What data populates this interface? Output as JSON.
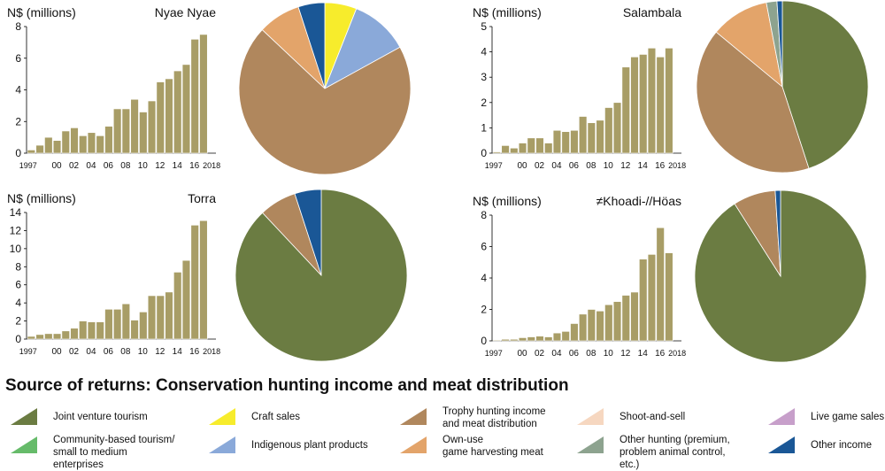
{
  "legend": {
    "title": "Source of returns: Conservation hunting income and meat distribution",
    "items": [
      {
        "label": "Joint venture tourism",
        "color": "#6b7c42"
      },
      {
        "label": "Craft sales",
        "color": "#f7ec2c"
      },
      {
        "label": "Trophy hunting income\nand meat distribution",
        "color": "#b0875d"
      },
      {
        "label": "Shoot-and-sell",
        "color": "#f6d7c0"
      },
      {
        "label": "Live game sales",
        "color": "#c79fca"
      },
      {
        "label": "Community-based tourism/\nsmall to medium enterprises",
        "color": "#66bb6a"
      },
      {
        "label": "Indigenous plant products",
        "color": "#8aa9d9"
      },
      {
        "label": "Own-use\ngame harvesting meat",
        "color": "#e3a46a"
      },
      {
        "label": "Other hunting (premium,\nproblem animal control, etc.)",
        "color": "#8da38f"
      },
      {
        "label": "Other income",
        "color": "#1a5796"
      }
    ]
  },
  "chart_data": [
    {
      "type": "bar",
      "title": "Nyae Nyae",
      "ylabel": "N$ (millions)",
      "ylim": [
        0,
        8
      ],
      "yticks": [
        0,
        2,
        4,
        6,
        8
      ],
      "xticks": [
        "1997",
        "00",
        "02",
        "04",
        "06",
        "08",
        "10",
        "12",
        "14",
        "16",
        "2018"
      ],
      "x": [
        1997,
        1998,
        1999,
        2000,
        2001,
        2002,
        2003,
        2004,
        2005,
        2006,
        2007,
        2008,
        2009,
        2010,
        2011,
        2012,
        2013,
        2014,
        2015,
        2016,
        2017,
        2018
      ],
      "values": [
        0.2,
        0.5,
        1.0,
        0.8,
        1.4,
        1.6,
        1.1,
        1.3,
        1.1,
        1.7,
        2.8,
        2.8,
        3.4,
        2.6,
        3.3,
        4.5,
        4.7,
        5.2,
        5.6,
        7.2,
        7.5,
        0
      ],
      "bar_color": "#a89d66"
    },
    {
      "type": "pie",
      "slices": [
        {
          "source": "Craft sales",
          "value": 6,
          "color": "#f7ec2c"
        },
        {
          "source": "Indigenous plant products",
          "value": 11,
          "color": "#8aa9d9"
        },
        {
          "source": "Trophy hunting income and meat distribution",
          "value": 70,
          "color": "#b0875d"
        },
        {
          "source": "Own-use game harvesting meat",
          "value": 8,
          "color": "#e3a46a"
        },
        {
          "source": "Other income",
          "value": 5,
          "color": "#1a5796"
        }
      ]
    },
    {
      "type": "bar",
      "title": "Salambala",
      "ylabel": "N$ (millions)",
      "ylim": [
        0,
        5
      ],
      "yticks": [
        0,
        1,
        2,
        3,
        4,
        5
      ],
      "xticks": [
        "1997",
        "00",
        "02",
        "04",
        "06",
        "08",
        "10",
        "12",
        "14",
        "16",
        "2018"
      ],
      "x": [
        1997,
        1998,
        1999,
        2000,
        2001,
        2002,
        2003,
        2004,
        2005,
        2006,
        2007,
        2008,
        2009,
        2010,
        2011,
        2012,
        2013,
        2014,
        2015,
        2016,
        2017,
        2018
      ],
      "values": [
        0.05,
        0.3,
        0.2,
        0.4,
        0.6,
        0.6,
        0.4,
        0.9,
        0.85,
        0.9,
        1.45,
        1.2,
        1.3,
        1.8,
        2.0,
        3.4,
        3.8,
        3.9,
        4.15,
        3.8,
        4.15,
        0
      ],
      "bar_color": "#a89d66"
    },
    {
      "type": "pie",
      "slices": [
        {
          "source": "Joint venture tourism",
          "value": 45,
          "color": "#6b7c42"
        },
        {
          "source": "Trophy hunting income and meat distribution",
          "value": 41,
          "color": "#b0875d"
        },
        {
          "source": "Own-use game harvesting meat",
          "value": 11,
          "color": "#e3a46a"
        },
        {
          "source": "Other hunting (premium, problem animal control, etc.)",
          "value": 2,
          "color": "#8da38f"
        },
        {
          "source": "Other income",
          "value": 1,
          "color": "#1a5796"
        }
      ]
    },
    {
      "type": "bar",
      "title": "Torra",
      "ylabel": "N$ (millions)",
      "ylim": [
        0,
        14
      ],
      "yticks": [
        0,
        2,
        4,
        6,
        8,
        10,
        12,
        14
      ],
      "xticks": [
        "1997",
        "00",
        "02",
        "04",
        "06",
        "08",
        "10",
        "12",
        "14",
        "16",
        "2018"
      ],
      "x": [
        1997,
        1998,
        1999,
        2000,
        2001,
        2002,
        2003,
        2004,
        2005,
        2006,
        2007,
        2008,
        2009,
        2010,
        2011,
        2012,
        2013,
        2014,
        2015,
        2016,
        2017,
        2018
      ],
      "values": [
        0.3,
        0.5,
        0.6,
        0.6,
        0.9,
        1.2,
        2.0,
        1.9,
        1.9,
        3.3,
        3.3,
        3.9,
        2.1,
        3.0,
        4.8,
        4.8,
        5.2,
        7.4,
        8.7,
        12.6,
        13.1,
        0
      ],
      "bar_color": "#a89d66"
    },
    {
      "type": "pie",
      "slices": [
        {
          "source": "Joint venture tourism",
          "value": 88,
          "color": "#6b7c42"
        },
        {
          "source": "Trophy hunting income and meat distribution",
          "value": 7,
          "color": "#b0875d"
        },
        {
          "source": "Other income",
          "value": 5,
          "color": "#1a5796"
        }
      ]
    },
    {
      "type": "bar",
      "title": "≠Khoadi-//Höas",
      "ylabel": "N$ (millions)",
      "ylim": [
        0,
        8
      ],
      "yticks": [
        0,
        2,
        4,
        6,
        8
      ],
      "xticks": [
        "1997",
        "00",
        "02",
        "04",
        "06",
        "08",
        "10",
        "12",
        "14",
        "16",
        "2018"
      ],
      "x": [
        1997,
        1998,
        1999,
        2000,
        2001,
        2002,
        2003,
        2004,
        2005,
        2006,
        2007,
        2008,
        2009,
        2010,
        2011,
        2012,
        2013,
        2014,
        2015,
        2016,
        2017,
        2018
      ],
      "values": [
        0.05,
        0.1,
        0.1,
        0.2,
        0.25,
        0.3,
        0.25,
        0.5,
        0.6,
        1.1,
        1.7,
        2.0,
        1.9,
        2.3,
        2.5,
        2.9,
        3.1,
        5.2,
        5.5,
        7.2,
        5.6,
        0
      ],
      "bar_color": "#a89d66"
    },
    {
      "type": "pie",
      "slices": [
        {
          "source": "Joint venture tourism",
          "value": 91,
          "color": "#6b7c42"
        },
        {
          "source": "Trophy hunting income and meat distribution",
          "value": 8,
          "color": "#b0875d"
        },
        {
          "source": "Other income",
          "value": 1,
          "color": "#1a5796"
        }
      ]
    }
  ]
}
